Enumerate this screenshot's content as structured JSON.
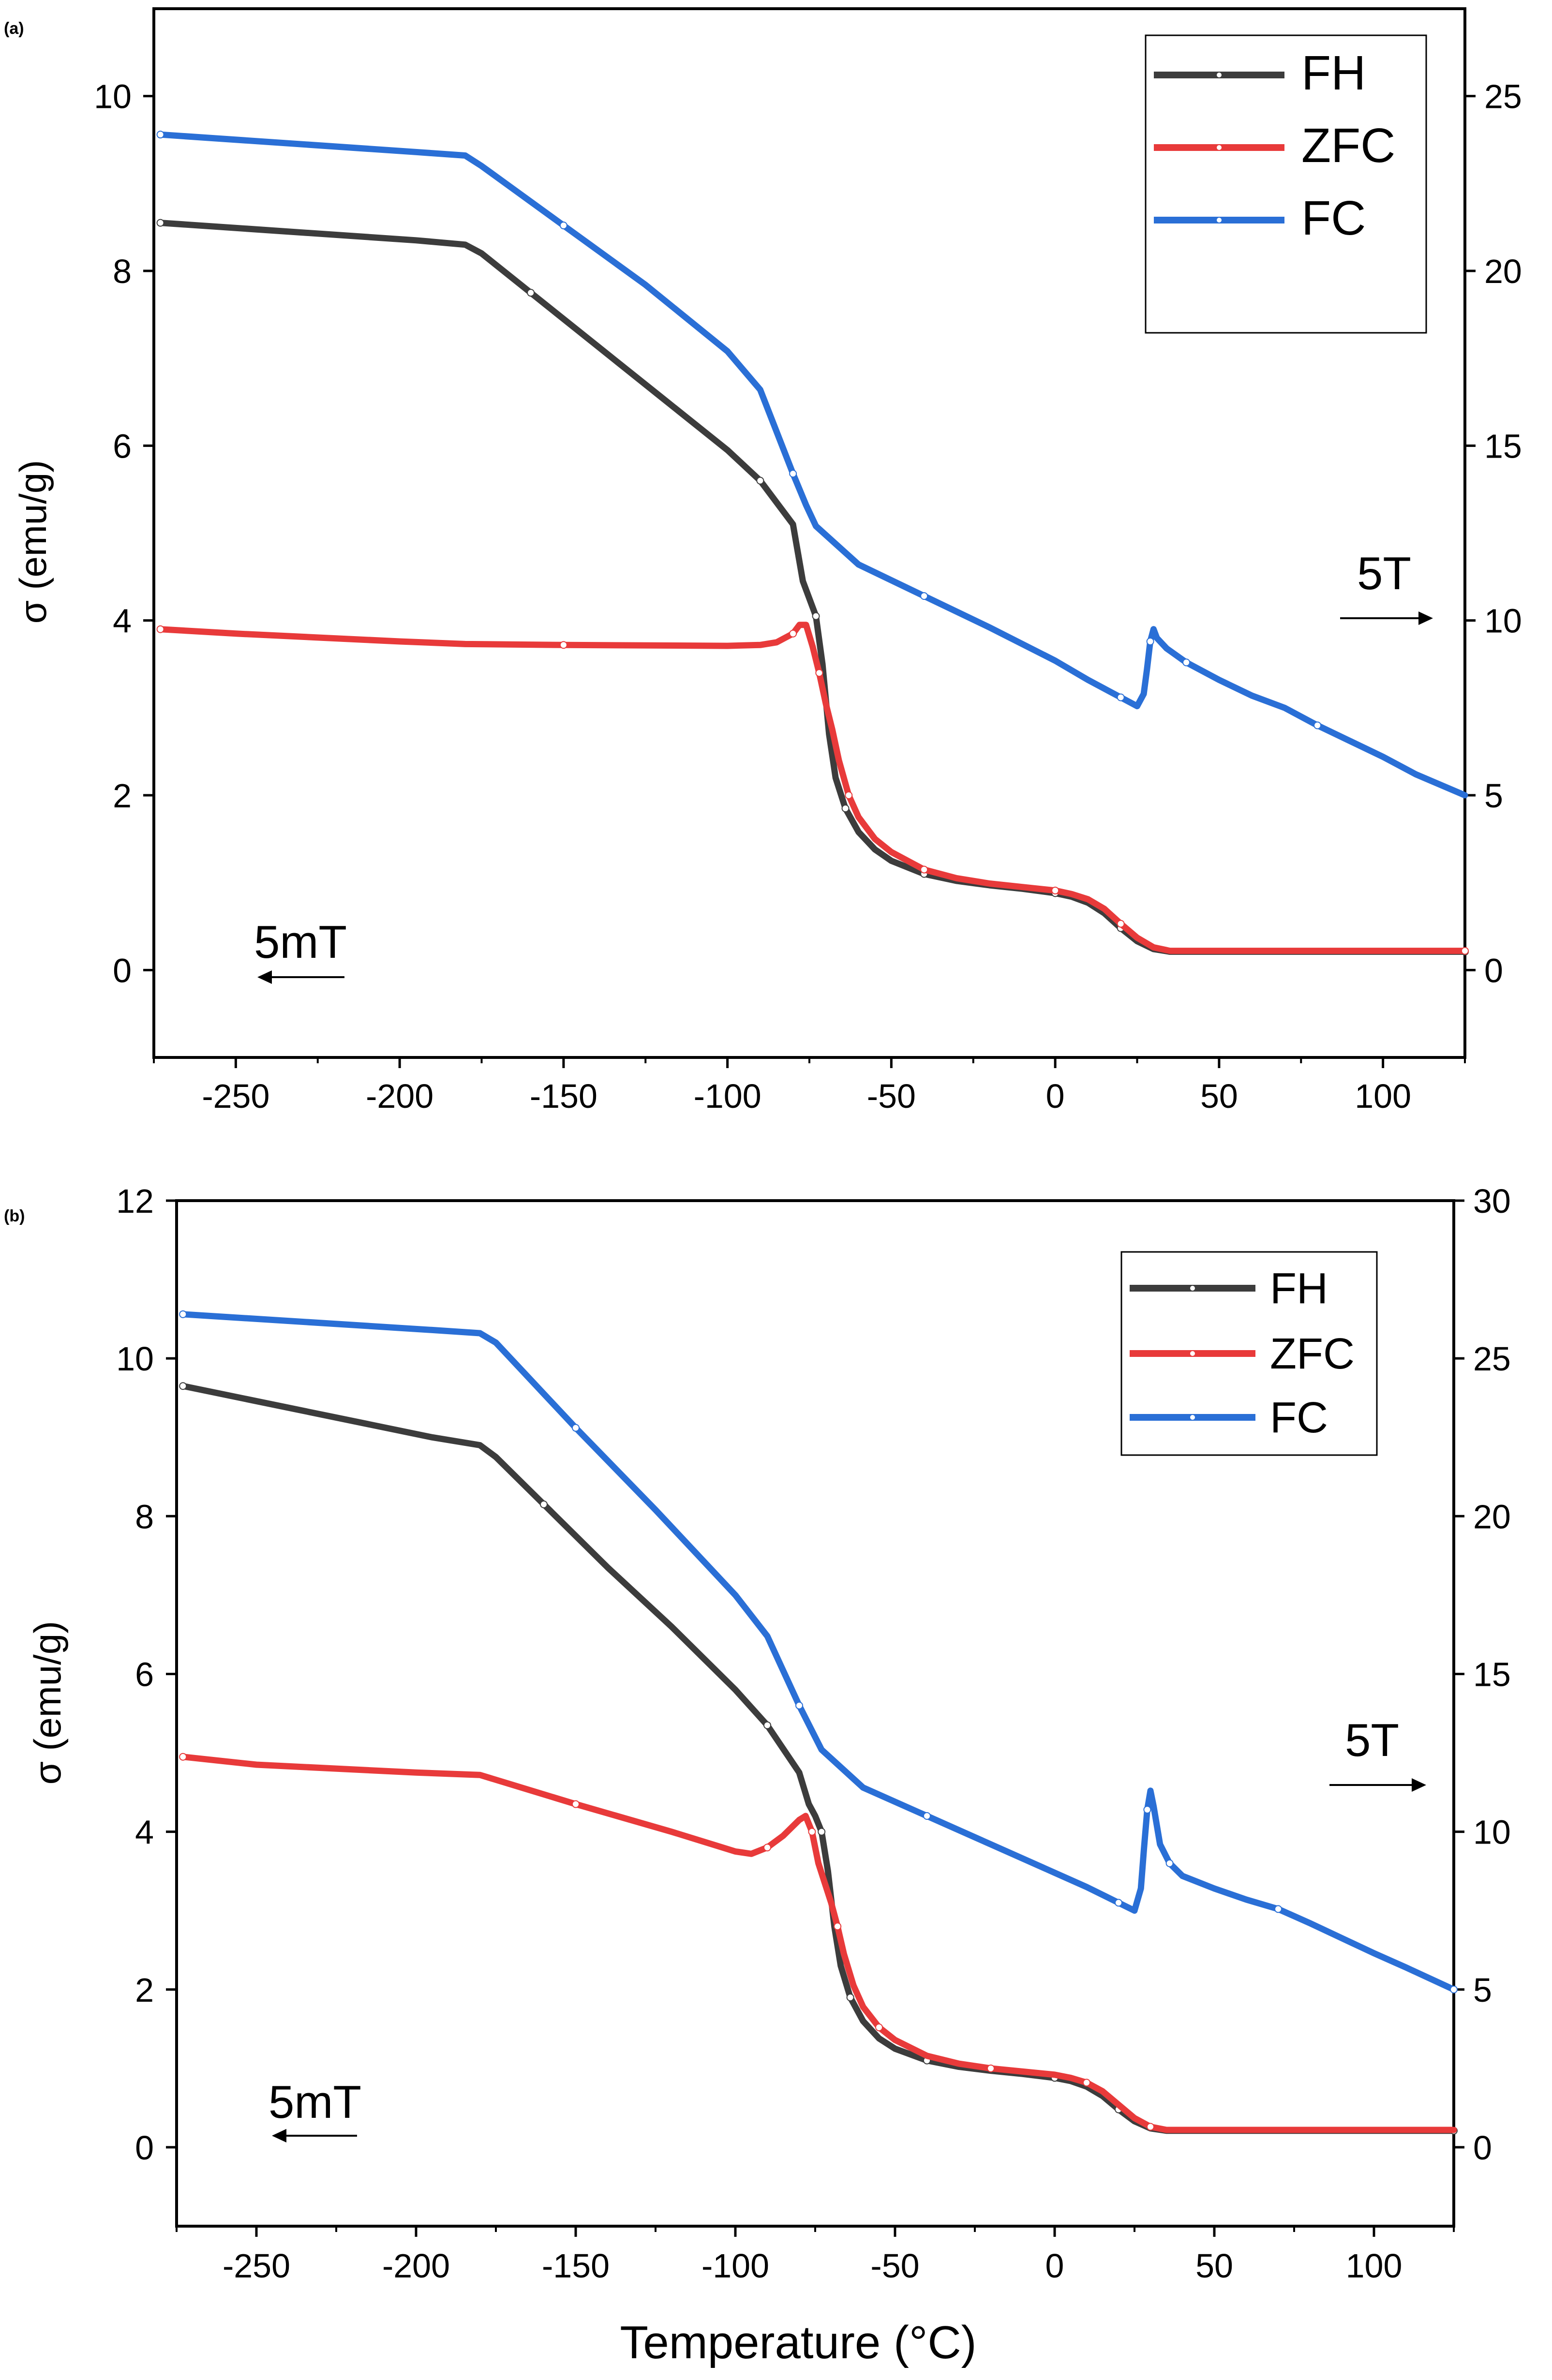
{
  "figure": {
    "xlabel": "Temperature (°C)"
  },
  "chart_data": [
    {
      "panel_label": "(a)",
      "type": "line",
      "xlim": [
        -275,
        125
      ],
      "ylim_left": [
        -1,
        11
      ],
      "ylim_right": [
        -2.5,
        27.5
      ],
      "ylabel_left": "σ (emu/g)",
      "xticks": [
        -250,
        -200,
        -150,
        -100,
        -50,
        0,
        50,
        100
      ],
      "yticks_left": [
        0,
        2,
        4,
        6,
        8,
        10
      ],
      "yticks_right": [
        0,
        5,
        10,
        15,
        20,
        25
      ],
      "grid": false,
      "legend_position": "top-right",
      "annotations": [
        {
          "text": "5mT",
          "arrow": "left",
          "x": -240,
          "y": 0.35
        },
        {
          "text": "5T",
          "arrow": "right",
          "x": 100,
          "y": 4.35
        }
      ],
      "series": [
        {
          "name": "FH",
          "color": "#3c3c3c",
          "axis": "left",
          "points": [
            [
              -273,
              8.55
            ],
            [
              -195,
              8.35
            ],
            [
              -180,
              8.3
            ],
            [
              -175,
              8.2
            ],
            [
              -160,
              7.75
            ],
            [
              -140,
              7.15
            ],
            [
              -120,
              6.55
            ],
            [
              -100,
              5.95
            ],
            [
              -90,
              5.6
            ],
            [
              -80,
              5.1
            ],
            [
              -77,
              4.45
            ],
            [
              -75,
              4.25
            ],
            [
              -73,
              4.05
            ],
            [
              -71,
              3.5
            ],
            [
              -69,
              2.7
            ],
            [
              -67,
              2.2
            ],
            [
              -64,
              1.85
            ],
            [
              -60,
              1.58
            ],
            [
              -55,
              1.38
            ],
            [
              -50,
              1.25
            ],
            [
              -40,
              1.1
            ],
            [
              -30,
              1.02
            ],
            [
              -20,
              0.97
            ],
            [
              -10,
              0.93
            ],
            [
              0,
              0.88
            ],
            [
              5,
              0.84
            ],
            [
              10,
              0.77
            ],
            [
              15,
              0.65
            ],
            [
              20,
              0.48
            ],
            [
              25,
              0.33
            ],
            [
              30,
              0.24
            ],
            [
              35,
              0.21
            ],
            [
              125,
              0.21
            ]
          ]
        },
        {
          "name": "ZFC",
          "color": "#e83a3a",
          "axis": "left",
          "points": [
            [
              -273,
              3.9
            ],
            [
              -250,
              3.85
            ],
            [
              -200,
              3.76
            ],
            [
              -180,
              3.73
            ],
            [
              -150,
              3.72
            ],
            [
              -100,
              3.71
            ],
            [
              -90,
              3.72
            ],
            [
              -85,
              3.75
            ],
            [
              -80,
              3.85
            ],
            [
              -78,
              3.95
            ],
            [
              -76,
              3.95
            ],
            [
              -74,
              3.7
            ],
            [
              -72,
              3.4
            ],
            [
              -70,
              3.05
            ],
            [
              -68,
              2.75
            ],
            [
              -66,
              2.4
            ],
            [
              -63,
              2.0
            ],
            [
              -60,
              1.75
            ],
            [
              -55,
              1.5
            ],
            [
              -50,
              1.35
            ],
            [
              -40,
              1.15
            ],
            [
              -30,
              1.05
            ],
            [
              -20,
              0.99
            ],
            [
              -10,
              0.95
            ],
            [
              0,
              0.91
            ],
            [
              5,
              0.87
            ],
            [
              10,
              0.81
            ],
            [
              15,
              0.7
            ],
            [
              20,
              0.53
            ],
            [
              25,
              0.37
            ],
            [
              30,
              0.26
            ],
            [
              35,
              0.22
            ],
            [
              125,
              0.22
            ]
          ]
        },
        {
          "name": "FC",
          "color": "#2a6fd6",
          "axis": "right",
          "points": [
            [
              -273,
              23.9
            ],
            [
              -195,
              23.4
            ],
            [
              -180,
              23.3
            ],
            [
              -175,
              23.0
            ],
            [
              -150,
              21.3
            ],
            [
              -125,
              19.6
            ],
            [
              -100,
              17.7
            ],
            [
              -90,
              16.6
            ],
            [
              -80,
              14.2
            ],
            [
              -76,
              13.3
            ],
            [
              -73,
              12.7
            ],
            [
              -60,
              11.6
            ],
            [
              -40,
              10.7
            ],
            [
              -20,
              9.8
            ],
            [
              0,
              8.85
            ],
            [
              10,
              8.3
            ],
            [
              20,
              7.8
            ],
            [
              25,
              7.55
            ],
            [
              27,
              7.9
            ],
            [
              28,
              8.6
            ],
            [
              29,
              9.4
            ],
            [
              30,
              9.75
            ],
            [
              31,
              9.5
            ],
            [
              34,
              9.2
            ],
            [
              40,
              8.8
            ],
            [
              50,
              8.3
            ],
            [
              60,
              7.85
            ],
            [
              70,
              7.5
            ],
            [
              80,
              7.0
            ],
            [
              100,
              6.1
            ],
            [
              110,
              5.6
            ],
            [
              125,
              5.0
            ]
          ]
        }
      ]
    },
    {
      "panel_label": "(b)",
      "type": "line",
      "xlim": [
        -275,
        125
      ],
      "ylim_left": [
        -1,
        12
      ],
      "ylim_right": [
        -2.5,
        30
      ],
      "ylabel_left": "σ (emu/g)",
      "xlabel": "Temperature (°C)",
      "xticks": [
        -250,
        -200,
        -150,
        -100,
        -50,
        0,
        50,
        100
      ],
      "yticks_left": [
        0,
        2,
        4,
        6,
        8,
        10,
        12
      ],
      "yticks_right": [
        0,
        5,
        10,
        15,
        20,
        25,
        30
      ],
      "grid": false,
      "legend_position": "top-right",
      "annotations": [
        {
          "text": "5mT",
          "arrow": "left",
          "x": -235,
          "y": 0.35
        },
        {
          "text": "5T",
          "arrow": "right",
          "x": 100,
          "y": 4.6
        }
      ],
      "series": [
        {
          "name": "FH",
          "color": "#3c3c3c",
          "axis": "left",
          "points": [
            [
              -273,
              9.65
            ],
            [
              -195,
              9.0
            ],
            [
              -180,
              8.9
            ],
            [
              -175,
              8.75
            ],
            [
              -160,
              8.15
            ],
            [
              -140,
              7.35
            ],
            [
              -120,
              6.6
            ],
            [
              -100,
              5.8
            ],
            [
              -90,
              5.35
            ],
            [
              -80,
              4.75
            ],
            [
              -77,
              4.35
            ],
            [
              -75,
              4.2
            ],
            [
              -73,
              4.0
            ],
            [
              -71,
              3.5
            ],
            [
              -69,
              2.8
            ],
            [
              -67,
              2.3
            ],
            [
              -64,
              1.9
            ],
            [
              -60,
              1.6
            ],
            [
              -55,
              1.38
            ],
            [
              -50,
              1.25
            ],
            [
              -40,
              1.1
            ],
            [
              -30,
              1.02
            ],
            [
              -20,
              0.97
            ],
            [
              -10,
              0.93
            ],
            [
              0,
              0.88
            ],
            [
              5,
              0.84
            ],
            [
              10,
              0.77
            ],
            [
              15,
              0.65
            ],
            [
              20,
              0.48
            ],
            [
              25,
              0.33
            ],
            [
              30,
              0.24
            ],
            [
              35,
              0.21
            ],
            [
              125,
              0.21
            ]
          ]
        },
        {
          "name": "ZFC",
          "color": "#e83a3a",
          "axis": "left",
          "points": [
            [
              -273,
              4.95
            ],
            [
              -250,
              4.85
            ],
            [
              -200,
              4.75
            ],
            [
              -180,
              4.72
            ],
            [
              -150,
              4.35
            ],
            [
              -120,
              4.0
            ],
            [
              -100,
              3.75
            ],
            [
              -95,
              3.72
            ],
            [
              -90,
              3.8
            ],
            [
              -85,
              3.95
            ],
            [
              -80,
              4.15
            ],
            [
              -78,
              4.2
            ],
            [
              -76,
              4.0
            ],
            [
              -74,
              3.6
            ],
            [
              -72,
              3.35
            ],
            [
              -70,
              3.1
            ],
            [
              -68,
              2.8
            ],
            [
              -66,
              2.45
            ],
            [
              -63,
              2.05
            ],
            [
              -60,
              1.78
            ],
            [
              -55,
              1.52
            ],
            [
              -50,
              1.36
            ],
            [
              -40,
              1.16
            ],
            [
              -30,
              1.06
            ],
            [
              -20,
              1.0
            ],
            [
              -10,
              0.96
            ],
            [
              0,
              0.92
            ],
            [
              5,
              0.88
            ],
            [
              10,
              0.82
            ],
            [
              15,
              0.71
            ],
            [
              20,
              0.54
            ],
            [
              25,
              0.37
            ],
            [
              30,
              0.26
            ],
            [
              35,
              0.22
            ],
            [
              125,
              0.22
            ]
          ]
        },
        {
          "name": "FC",
          "color": "#2a6fd6",
          "axis": "right",
          "points": [
            [
              -273,
              26.4
            ],
            [
              -195,
              25.9
            ],
            [
              -180,
              25.8
            ],
            [
              -175,
              25.5
            ],
            [
              -150,
              22.8
            ],
            [
              -125,
              20.2
            ],
            [
              -100,
              17.5
            ],
            [
              -90,
              16.2
            ],
            [
              -80,
              14.0
            ],
            [
              -76,
              13.2
            ],
            [
              -73,
              12.6
            ],
            [
              -60,
              11.4
            ],
            [
              -40,
              10.5
            ],
            [
              -20,
              9.6
            ],
            [
              0,
              8.7
            ],
            [
              10,
              8.25
            ],
            [
              20,
              7.75
            ],
            [
              25,
              7.5
            ],
            [
              27,
              8.2
            ],
            [
              28,
              9.5
            ],
            [
              29,
              10.7
            ],
            [
              30,
              11.3
            ],
            [
              31,
              10.8
            ],
            [
              33,
              9.6
            ],
            [
              36,
              9.0
            ],
            [
              40,
              8.6
            ],
            [
              50,
              8.2
            ],
            [
              60,
              7.85
            ],
            [
              70,
              7.55
            ],
            [
              80,
              7.1
            ],
            [
              100,
              6.15
            ],
            [
              110,
              5.7
            ],
            [
              125,
              5.0
            ]
          ]
        }
      ]
    }
  ]
}
